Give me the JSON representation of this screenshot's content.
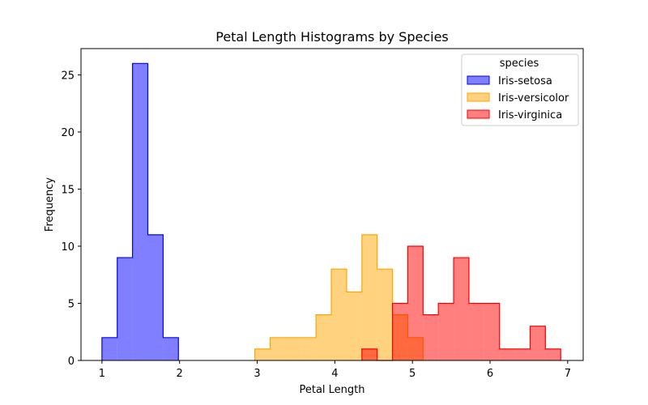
{
  "chart_data": {
    "type": "histogram",
    "title": "Petal Length Histograms by Species",
    "xlabel": "Petal Length",
    "ylabel": "Frequency",
    "xlim": [
      0.73,
      7.2
    ],
    "ylim": [
      0,
      27.3
    ],
    "xticks": [
      1,
      2,
      3,
      4,
      5,
      6,
      7
    ],
    "yticks": [
      0,
      5,
      10,
      15,
      20,
      25
    ],
    "legend": {
      "title": "species",
      "placement": "top-right",
      "entries": [
        "Iris-setosa",
        "Iris-versicolor",
        "Iris-virginica"
      ]
    },
    "grid": false,
    "histtype": "step-filled",
    "bin_width": 0.197,
    "bin_start": 1.0,
    "series": [
      {
        "name": "Iris-setosa",
        "fill": "#8080ff",
        "stroke": "#0000ff",
        "counts": [
          2,
          9,
          26,
          11,
          2,
          0,
          0,
          0,
          0,
          0,
          0,
          0,
          0,
          0,
          0,
          0,
          0,
          0,
          0,
          0,
          0,
          0,
          0,
          0,
          0,
          0,
          0,
          0,
          0,
          0
        ]
      },
      {
        "name": "Iris-versicolor",
        "fill": "#ffd07f",
        "stroke": "#ffa500",
        "counts": [
          0,
          0,
          0,
          0,
          0,
          0,
          0,
          0,
          0,
          0,
          1,
          2,
          2,
          2,
          4,
          8,
          6,
          11,
          8,
          4,
          2,
          0,
          0,
          0,
          0,
          0,
          0,
          0,
          0,
          0
        ]
      },
      {
        "name": "Iris-virginica",
        "fill": "#ff8080",
        "stroke": "#ff0000",
        "counts": [
          0,
          0,
          0,
          0,
          0,
          0,
          0,
          0,
          0,
          0,
          0,
          0,
          0,
          0,
          0,
          0,
          0,
          1,
          0,
          5,
          10,
          4,
          5,
          9,
          5,
          5,
          1,
          1,
          3,
          1
        ]
      }
    ]
  }
}
